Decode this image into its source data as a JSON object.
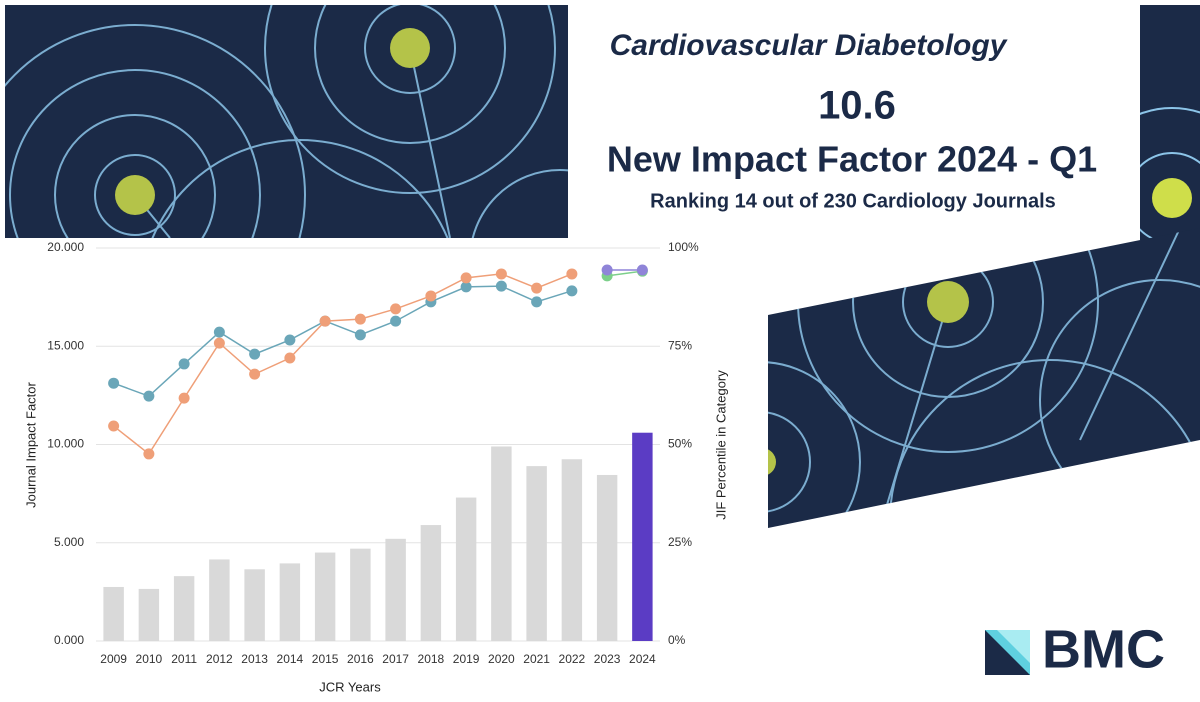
{
  "header": {
    "journal": "Cardiovascular Diabetology",
    "impact_factor": "10.6",
    "headline": "New Impact Factor 2024 - Q1",
    "ranking": "Ranking 14 out of 230 Cardiology Journals",
    "brand": "BMC"
  },
  "chart_data": {
    "type": "combo",
    "xlabel": "JCR Years",
    "ylabel": "Journal Impact Factor",
    "y2label": "JIF Percentile in Category",
    "categories": [
      "2009",
      "2010",
      "2011",
      "2012",
      "2013",
      "2014",
      "2015",
      "2016",
      "2017",
      "2018",
      "2019",
      "2020",
      "2021",
      "2022",
      "2023",
      "2024"
    ],
    "ylim": [
      0,
      20
    ],
    "yticks": [
      {
        "value": 0,
        "label": "0.000"
      },
      {
        "value": 5,
        "label": "5.000"
      },
      {
        "value": 10,
        "label": "10.000"
      },
      {
        "value": 15,
        "label": "15.000"
      },
      {
        "value": 20,
        "label": "20.000"
      }
    ],
    "y2lim": [
      0,
      100
    ],
    "y2ticks": [
      {
        "value": 0,
        "label": "0%"
      },
      {
        "value": 25,
        "label": "25%"
      },
      {
        "value": 50,
        "label": "50%"
      },
      {
        "value": 75,
        "label": "75%"
      },
      {
        "value": 100,
        "label": "100%"
      }
    ],
    "grid": true,
    "series": [
      {
        "type": "bar",
        "colors": [
          "#d9d9d9",
          "#d9d9d9",
          "#d9d9d9",
          "#d9d9d9",
          "#d9d9d9",
          "#d9d9d9",
          "#d9d9d9",
          "#d9d9d9",
          "#d9d9d9",
          "#d9d9d9",
          "#d9d9d9",
          "#d9d9d9",
          "#d9d9d9",
          "#d9d9d9",
          "#d9d9d9",
          "#5b3cc4"
        ],
        "values": [
          2.75,
          2.65,
          3.3,
          4.15,
          3.65,
          3.95,
          4.5,
          4.7,
          5.2,
          5.9,
          7.3,
          9.9,
          8.9,
          9.25,
          8.45,
          10.6
        ]
      },
      {
        "type": "line",
        "axis": "y2",
        "color": "#6aa6b8",
        "values": [
          65.6,
          62.3,
          70.5,
          78.6,
          73.0,
          76.6,
          81.4,
          77.9,
          81.4,
          86.3,
          90.1,
          90.3,
          86.3,
          89.1,
          null,
          null
        ]
      },
      {
        "type": "line",
        "axis": "y2",
        "color": "#ef9f78",
        "values": [
          54.7,
          47.6,
          61.8,
          75.8,
          67.9,
          72.0,
          81.4,
          81.9,
          84.5,
          87.8,
          92.4,
          93.4,
          89.8,
          93.4,
          null,
          null
        ]
      },
      {
        "type": "line",
        "axis": "y2",
        "color": "#7ccf8a",
        "values": [
          null,
          null,
          null,
          null,
          null,
          null,
          null,
          null,
          null,
          null,
          null,
          null,
          null,
          null,
          92.9,
          94.1
        ]
      },
      {
        "type": "line",
        "axis": "y2",
        "color": "#8f84d8",
        "values": [
          null,
          null,
          null,
          null,
          null,
          null,
          null,
          null,
          null,
          null,
          null,
          null,
          null,
          null,
          94.4,
          94.4
        ]
      }
    ]
  }
}
